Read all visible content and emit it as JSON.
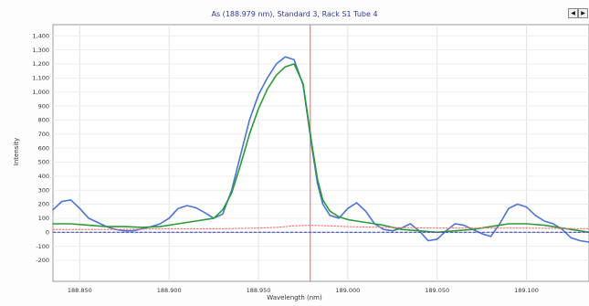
{
  "chart_data": {
    "type": "line",
    "title": "As (188.979 nm), Standard 3, Rack S1 Tube 4",
    "xlabel": "Wavelength (nm)",
    "ylabel": "Intensity",
    "xlim": [
      188.835,
      189.135
    ],
    "ylim": [
      -350,
      1480
    ],
    "yticks": [
      -200,
      -100,
      0,
      100,
      200,
      300,
      400,
      500,
      600,
      700,
      800,
      900,
      1000,
      1100,
      1200,
      1300,
      1400
    ],
    "ytick_labels": [
      "-200",
      "-100",
      "0",
      "100",
      "200",
      "300",
      "400",
      "500",
      "600",
      "700",
      "800",
      "900",
      "1,000",
      "1,100",
      "1,200",
      "1,300",
      "1,400"
    ],
    "xticks": [
      188.85,
      188.9,
      188.95,
      189.0,
      189.05,
      189.1
    ],
    "xtick_labels": [
      "188.850",
      "188.900",
      "188.950",
      "189.000",
      "189.050",
      "189.100"
    ],
    "grid": true,
    "vertical_marker": 188.979,
    "series": [
      {
        "color": "#4a74d6",
        "style": "solid",
        "x": [
          188.835,
          188.84,
          188.845,
          188.85,
          188.855,
          188.86,
          188.865,
          188.87,
          188.875,
          188.88,
          188.885,
          188.89,
          188.895,
          188.9,
          188.905,
          188.91,
          188.915,
          188.92,
          188.925,
          188.93,
          188.935,
          188.94,
          188.945,
          188.95,
          188.955,
          188.96,
          188.965,
          188.97,
          188.975,
          188.98,
          188.983,
          188.986,
          188.99,
          188.995,
          189.0,
          189.005,
          189.01,
          189.015,
          189.02,
          189.025,
          189.03,
          189.035,
          189.04,
          189.045,
          189.05,
          189.055,
          189.06,
          189.065,
          189.07,
          189.075,
          189.08,
          189.085,
          189.09,
          189.095,
          189.1,
          189.105,
          189.11,
          189.115,
          189.12,
          189.125,
          189.13,
          189.135
        ],
        "y": [
          160,
          220,
          230,
          170,
          100,
          70,
          40,
          20,
          10,
          10,
          25,
          40,
          60,
          100,
          170,
          190,
          175,
          140,
          100,
          130,
          300,
          550,
          800,
          980,
          1100,
          1200,
          1250,
          1230,
          1050,
          600,
          350,
          200,
          120,
          100,
          170,
          210,
          150,
          60,
          20,
          10,
          30,
          60,
          10,
          -60,
          -50,
          10,
          60,
          50,
          20,
          -10,
          -30,
          60,
          170,
          200,
          180,
          120,
          80,
          60,
          20,
          -40,
          -60,
          -70
        ]
      },
      {
        "color": "#2c9a38",
        "style": "solid",
        "x": [
          188.835,
          188.845,
          188.855,
          188.865,
          188.875,
          188.885,
          188.895,
          188.905,
          188.915,
          188.925,
          188.93,
          188.935,
          188.94,
          188.945,
          188.95,
          188.955,
          188.96,
          188.965,
          188.97,
          188.975,
          188.98,
          188.983,
          188.986,
          188.99,
          188.995,
          189.0,
          189.005,
          189.01,
          189.015,
          189.02,
          189.03,
          189.04,
          189.05,
          189.06,
          189.07,
          189.08,
          189.09,
          189.1,
          189.11,
          189.12,
          189.13,
          189.135
        ],
        "y": [
          60,
          60,
          50,
          40,
          40,
          35,
          40,
          60,
          80,
          100,
          160,
          280,
          480,
          700,
          880,
          1020,
          1120,
          1180,
          1200,
          1060,
          620,
          380,
          230,
          150,
          110,
          90,
          80,
          70,
          60,
          50,
          20,
          10,
          0,
          10,
          20,
          40,
          60,
          60,
          50,
          30,
          10,
          0
        ]
      },
      {
        "color": "#ff6a6a",
        "style": "dotted",
        "x": [
          188.835,
          188.87,
          188.9,
          188.93,
          188.95,
          188.96,
          188.97,
          188.979,
          188.99,
          189.0,
          189.02,
          189.05,
          189.08,
          189.1,
          189.135
        ],
        "y": [
          20,
          20,
          25,
          25,
          30,
          35,
          45,
          50,
          45,
          40,
          35,
          30,
          30,
          30,
          25
        ]
      },
      {
        "color": "#3f4fc4",
        "style": "dashed",
        "x": [
          188.835,
          189.135
        ],
        "y": [
          0,
          0
        ]
      }
    ]
  }
}
